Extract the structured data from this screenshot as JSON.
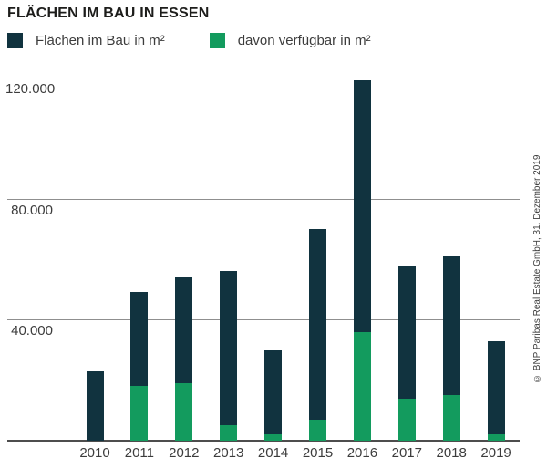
{
  "title": "FLÄCHEN IM BAU IN ESSEN",
  "legend": [
    {
      "label": "Flächen im Bau in m²",
      "color": "#11333f"
    },
    {
      "label": "davon verfügbar in m²",
      "color": "#139b5e"
    }
  ],
  "copyright": "© BNP Paribas Real Estate GmbH, 31. Dezember 2019",
  "chart_data": {
    "type": "bar",
    "variant": "overlay-stacked",
    "title": "FLÄCHEN IM BAU IN ESSEN",
    "categories": [
      "2010",
      "2011",
      "2012",
      "2013",
      "2014",
      "2015",
      "2016",
      "2017",
      "2018",
      "2019"
    ],
    "series": [
      {
        "name": "Flächen im Bau in m²",
        "color": "#11333f",
        "values": [
          23000,
          49000,
          54000,
          56000,
          30000,
          70000,
          119000,
          58000,
          61000,
          33000
        ]
      },
      {
        "name": "davon verfügbar in m²",
        "color": "#139b5e",
        "values": [
          0,
          18000,
          19000,
          5000,
          2000,
          7000,
          36000,
          14000,
          15000,
          2000
        ]
      }
    ],
    "xlabel": "",
    "ylabel": "",
    "ylim": [
      0,
      120000
    ],
    "yticks": [
      {
        "value": 40000,
        "label": "40.000"
      },
      {
        "value": 80000,
        "label": "80.000"
      },
      {
        "value": 120000,
        "label": "120.000"
      }
    ],
    "grid": true,
    "legend_position": "top"
  }
}
